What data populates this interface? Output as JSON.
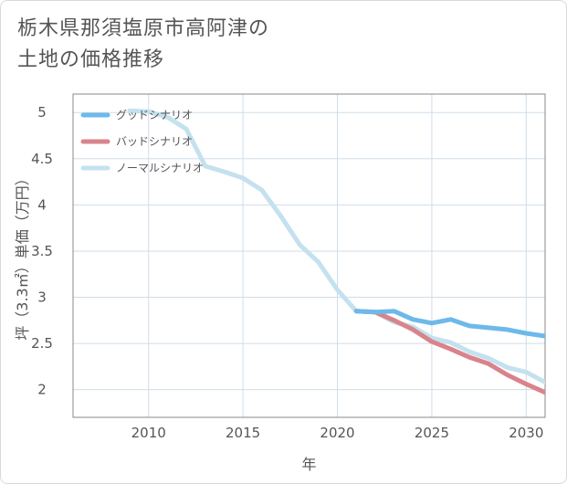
{
  "chart_data": {
    "type": "line",
    "title_lines": [
      "栃木県那須塩原市高阿津の",
      "土地の価格推移"
    ],
    "xlabel": "年",
    "ylabel": "坪（3.3㎡）単価（万円）",
    "xlim": [
      2006,
      2031
    ],
    "ylim": [
      1.7,
      5.2
    ],
    "x_ticks": [
      {
        "value": 2010,
        "label": "2010"
      },
      {
        "value": 2015,
        "label": "2015"
      },
      {
        "value": 2020,
        "label": "2020"
      },
      {
        "value": 2025,
        "label": "2025"
      },
      {
        "value": 2030,
        "label": "2030"
      }
    ],
    "y_ticks": [
      {
        "value": 2,
        "label": "2"
      },
      {
        "value": 2.5,
        "label": "2.5"
      },
      {
        "value": 3,
        "label": "3"
      },
      {
        "value": 3.5,
        "label": "3.5"
      },
      {
        "value": 4,
        "label": "4"
      },
      {
        "value": 4.5,
        "label": "4.5"
      },
      {
        "value": 5,
        "label": "5"
      }
    ],
    "grid": true,
    "legend_position": "top-left",
    "series": [
      {
        "name": "ノーマルシナリオ",
        "color": "#c4e1ef",
        "x": [
          2009,
          2010,
          2011,
          2012,
          2013,
          2014,
          2015,
          2016,
          2017,
          2018,
          2019,
          2020,
          2021,
          2022,
          2023,
          2024,
          2025,
          2026,
          2027,
          2028,
          2029,
          2030,
          2031
        ],
        "y": [
          5.02,
          5.01,
          4.95,
          4.82,
          4.42,
          4.36,
          4.29,
          4.16,
          3.88,
          3.57,
          3.38,
          3.08,
          2.85,
          2.84,
          2.73,
          2.68,
          2.56,
          2.51,
          2.41,
          2.34,
          2.24,
          2.19,
          2.08
        ]
      },
      {
        "name": "バッドシナリオ",
        "color": "#d9838b",
        "x": [
          2021,
          2022,
          2023,
          2024,
          2025,
          2026,
          2027,
          2028,
          2029,
          2030,
          2031
        ],
        "y": [
          2.85,
          2.84,
          2.75,
          2.65,
          2.52,
          2.44,
          2.35,
          2.28,
          2.16,
          2.06,
          1.97
        ]
      },
      {
        "name": "グッドシナリオ",
        "color": "#6db9ea",
        "x": [
          2021,
          2022,
          2023,
          2024,
          2025,
          2026,
          2027,
          2028,
          2029,
          2030,
          2031
        ],
        "y": [
          2.85,
          2.84,
          2.85,
          2.76,
          2.72,
          2.76,
          2.69,
          2.67,
          2.65,
          2.61,
          2.58
        ]
      }
    ],
    "legend_order": [
      "グッドシナリオ",
      "バッドシナリオ",
      "ノーマルシナリオ"
    ]
  }
}
